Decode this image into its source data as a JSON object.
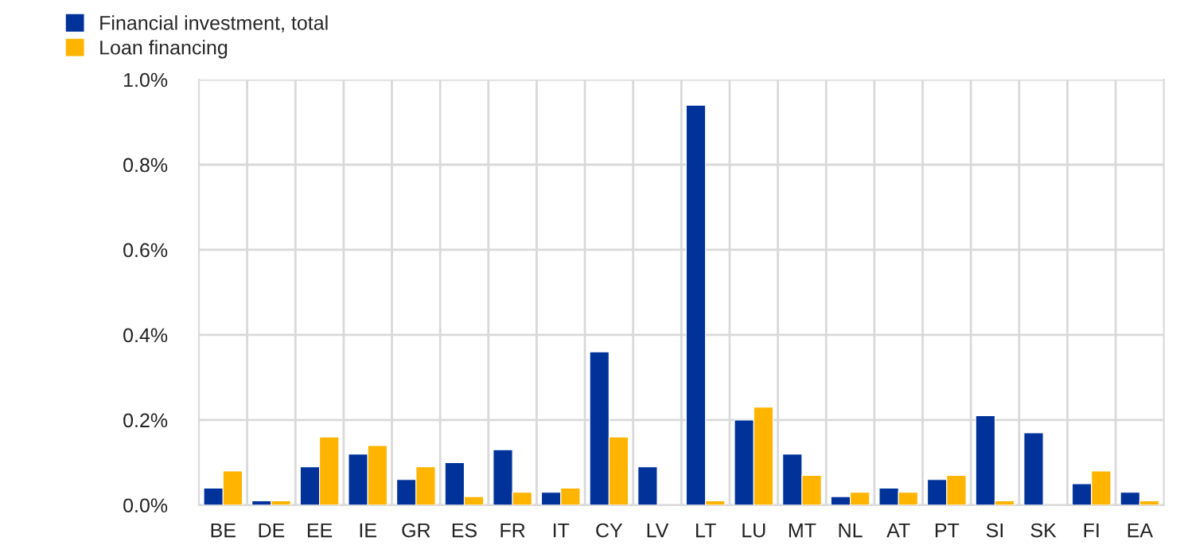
{
  "chart_data": {
    "type": "bar",
    "categories": [
      "BE",
      "DE",
      "EE",
      "IE",
      "GR",
      "ES",
      "FR",
      "IT",
      "CY",
      "LV",
      "LT",
      "LU",
      "MT",
      "NL",
      "AT",
      "PT",
      "SI",
      "SK",
      "FI",
      "EA"
    ],
    "series": [
      {
        "name": "Financial investment, total",
        "color": "#003299",
        "values": [
          0.04,
          0.01,
          0.09,
          0.12,
          0.06,
          0.1,
          0.13,
          0.03,
          0.36,
          0.09,
          0.94,
          0.2,
          0.12,
          0.02,
          0.04,
          0.06,
          0.21,
          0.17,
          0.05,
          0.03
        ]
      },
      {
        "name": "Loan financing",
        "color": "#ffb400",
        "values": [
          0.08,
          0.01,
          0.16,
          0.14,
          0.09,
          0.02,
          0.03,
          0.04,
          0.16,
          null,
          0.01,
          0.23,
          0.07,
          0.03,
          0.03,
          0.07,
          0.01,
          null,
          0.08,
          0.01
        ]
      }
    ],
    "ylim": [
      0,
      1.0
    ],
    "yticks": [
      {
        "value": 0,
        "label": "0.0%"
      },
      {
        "value": 0.2,
        "label": "0.2%"
      },
      {
        "value": 0.4,
        "label": "0.4%"
      },
      {
        "value": 0.6,
        "label": "0.6%"
      },
      {
        "value": 0.8,
        "label": "0.8%"
      },
      {
        "value": 1.0,
        "label": "1.0%"
      }
    ],
    "grid": true,
    "legend": "top left"
  }
}
